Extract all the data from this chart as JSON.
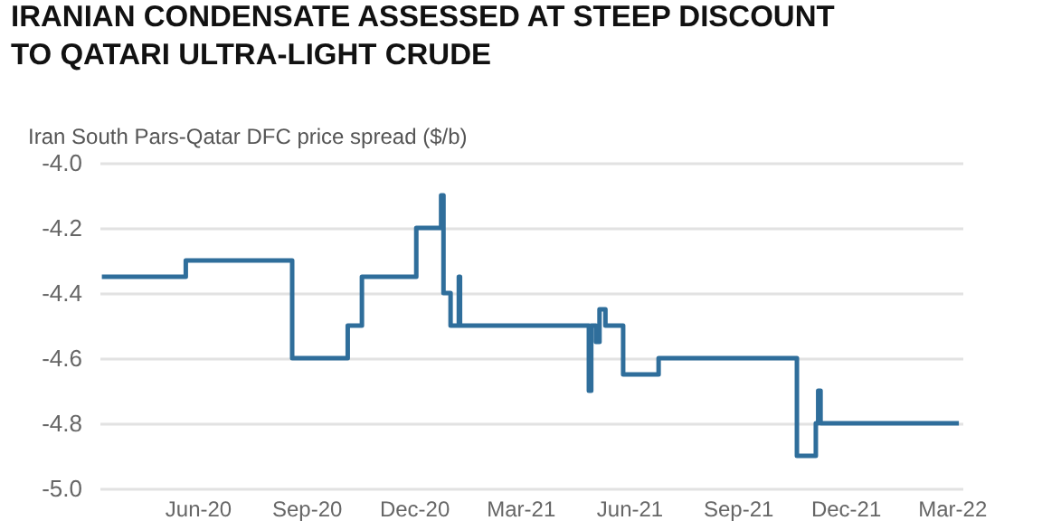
{
  "chart_data": {
    "type": "step",
    "title": "IRANIAN CONDENSATE ASSESSED AT STEEP DISCOUNT TO QATARI ULTRA-LIGHT CRUDE",
    "ylabel": "Iran South Pars-Qatar DFC price spread ($/b)",
    "x": [
      "2020-03-12",
      "2020-05-22",
      "2020-08-20",
      "2020-10-06",
      "2020-10-18",
      "2020-12-03",
      "2020-12-24",
      "2020-12-26",
      "2021-01-01",
      "2021-01-08",
      "2021-01-09",
      "2021-04-28",
      "2021-04-30",
      "2021-05-04",
      "2021-05-07",
      "2021-05-12",
      "2021-05-27",
      "2021-06-26",
      "2021-10-21",
      "2021-11-06",
      "2021-11-08",
      "2021-11-10",
      "2022-03-07"
    ],
    "series": [
      {
        "color": "#2f6e9b",
        "values": [
          -4.35,
          -4.3,
          -4.6,
          -4.5,
          -4.35,
          -4.2,
          -4.1,
          -4.4,
          -4.5,
          -4.35,
          -4.5,
          -4.7,
          -4.5,
          -4.55,
          -4.45,
          -4.5,
          -4.65,
          -4.6,
          -4.9,
          -4.8,
          -4.7,
          -4.8,
          -4.8
        ]
      }
    ],
    "xlim": [
      "2020-03-10",
      "2022-03-10"
    ],
    "xticks": [
      {
        "value": "2020-06-01",
        "label": "Jun-20"
      },
      {
        "value": "2020-09-01",
        "label": "Sep-20"
      },
      {
        "value": "2020-12-01",
        "label": "Dec-20"
      },
      {
        "value": "2021-03-01",
        "label": "Mar-21"
      },
      {
        "value": "2021-06-01",
        "label": "Jun-21"
      },
      {
        "value": "2021-09-01",
        "label": "Sep-21"
      },
      {
        "value": "2021-12-01",
        "label": "Dec-21"
      },
      {
        "value": "2022-03-01",
        "label": "Mar-22"
      }
    ],
    "ylim": [
      -5,
      -4
    ],
    "yticks": [
      {
        "value": -5,
        "label": "-5.0"
      },
      -4.8,
      -4.6,
      -4.4,
      -4.2,
      {
        "value": -4,
        "label": "-4.0"
      }
    ],
    "grid": "y",
    "line_style": "solid",
    "marker": "none"
  }
}
